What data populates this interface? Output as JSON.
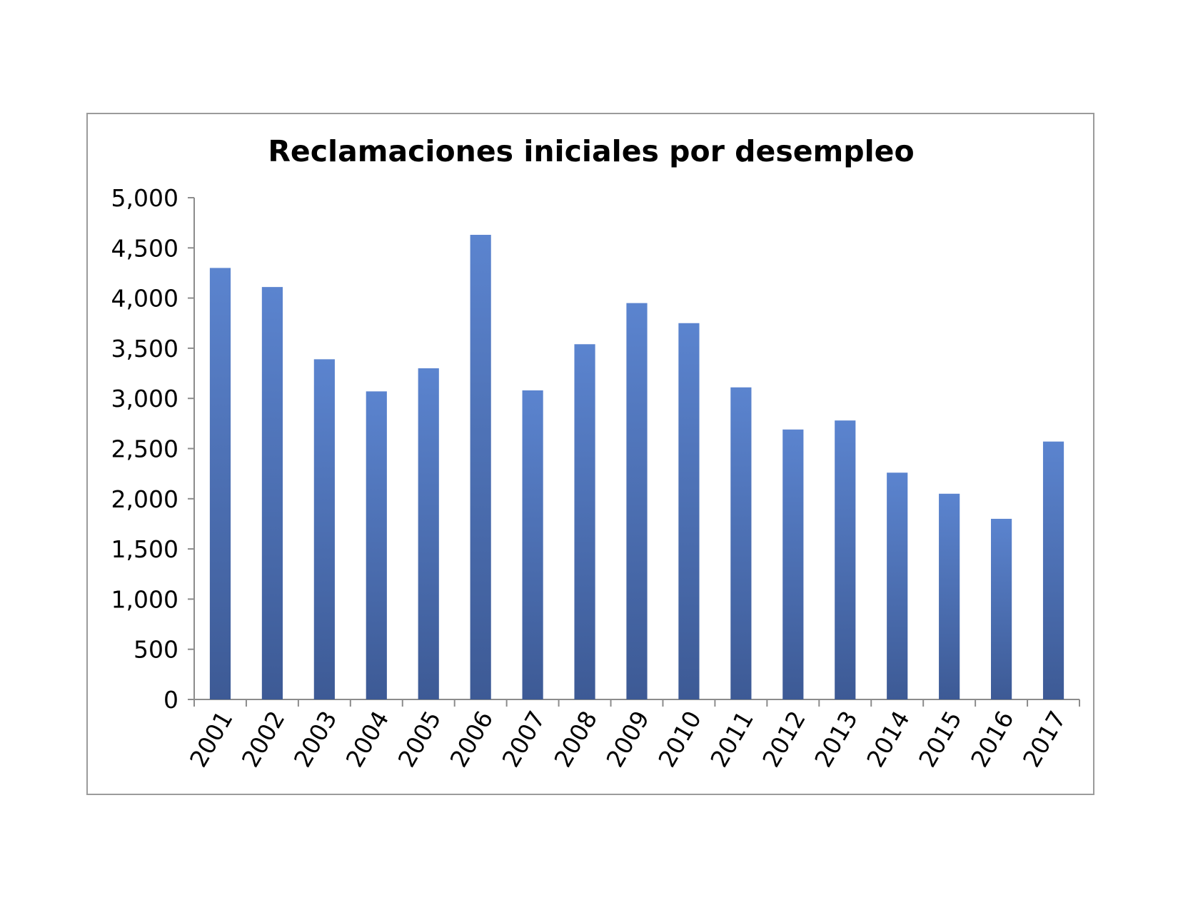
{
  "chart_data": {
    "type": "bar",
    "title": "Reclamaciones iniciales por desempleo",
    "xlabel": "",
    "ylabel": "",
    "categories": [
      "2001",
      "2002",
      "2003",
      "2004",
      "2005",
      "2006",
      "2007",
      "2008",
      "2009",
      "2010",
      "2011",
      "2012",
      "2013",
      "2014",
      "2015",
      "2016",
      "2017"
    ],
    "values": [
      4300,
      4110,
      3390,
      3070,
      3300,
      4630,
      3080,
      3540,
      3950,
      3750,
      3110,
      2690,
      2780,
      2260,
      2050,
      1800,
      2570
    ],
    "ylim": [
      0,
      5000
    ],
    "yticks": [
      0,
      500,
      1000,
      1500,
      2000,
      2500,
      3000,
      3500,
      4000,
      4500,
      5000
    ],
    "ytick_labels": [
      "0",
      "500",
      "1,000",
      "1,500",
      "2,000",
      "2,500",
      "3,000",
      "3,500",
      "4,000",
      "4,500",
      "5,000"
    ],
    "grid": false,
    "legend": "none",
    "colors": {
      "bar_top": "#5b84cf",
      "bar_bottom": "#3d5a95",
      "axis": "#8c8c8c",
      "frame": "#9b9b9b"
    }
  }
}
